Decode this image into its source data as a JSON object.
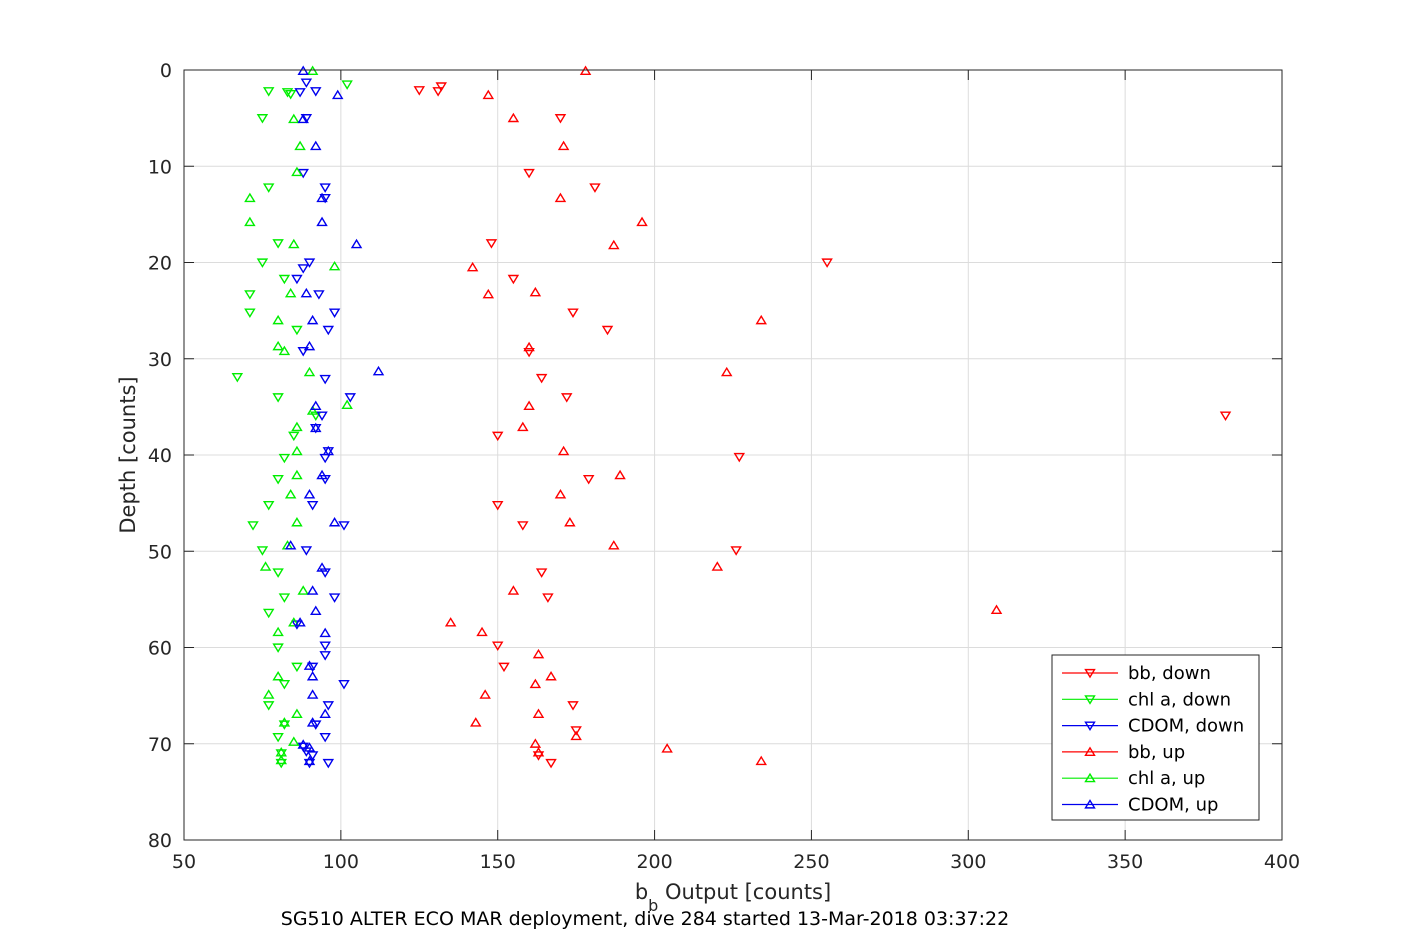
{
  "chart_data": {
    "type": "scatter",
    "xlabel_main": "b",
    "xlabel_sub": "b",
    "xlabel_rest": " Output [counts]",
    "ylabel": "Depth [counts]",
    "caption": "SG510 ALTER ECO MAR deployment, dive 284 started 13-Mar-2018 03:37:22",
    "xlim": [
      50,
      400
    ],
    "ylim": [
      0,
      80
    ],
    "y_reversed": true,
    "grid": true,
    "legend_position": "bottom-right",
    "x_ticks": [
      50,
      100,
      150,
      200,
      250,
      300,
      350,
      400
    ],
    "y_ticks": [
      0,
      10,
      20,
      30,
      40,
      50,
      60,
      70,
      80
    ],
    "x_tick_labels": [
      "50",
      "100",
      "150",
      "200",
      "250",
      "300",
      "350",
      "400"
    ],
    "y_tick_labels": [
      "0",
      "10",
      "20",
      "30",
      "40",
      "50",
      "60",
      "70",
      "80"
    ],
    "series": [
      {
        "name": "bb, down",
        "color": "#ff0000",
        "marker": "triangle-down",
        "points": [
          [
            125,
            2.1
          ],
          [
            131,
            2.2
          ],
          [
            132,
            1.7
          ],
          [
            170,
            5
          ],
          [
            160,
            10.7
          ],
          [
            181,
            12.2
          ],
          [
            148,
            18
          ],
          [
            255,
            20
          ],
          [
            155,
            21.7
          ],
          [
            174,
            25.2
          ],
          [
            185,
            27
          ],
          [
            164,
            32
          ],
          [
            172,
            34
          ],
          [
            382,
            35.9
          ],
          [
            150,
            38
          ],
          [
            227,
            40.2
          ],
          [
            179,
            42.5
          ],
          [
            150,
            45.2
          ],
          [
            158,
            47.3
          ],
          [
            226,
            49.9
          ],
          [
            164,
            52.2
          ],
          [
            166,
            54.8
          ],
          [
            150,
            59.8
          ],
          [
            152,
            62
          ],
          [
            174,
            66
          ],
          [
            175,
            68.6
          ],
          [
            163,
            71.2
          ],
          [
            167,
            72
          ],
          [
            160,
            29.3
          ]
        ]
      },
      {
        "name": "chl a, down",
        "color": "#00ee00",
        "marker": "triangle-down",
        "points": [
          [
            102,
            1.5
          ],
          [
            77,
            2.2
          ],
          [
            83,
            2.3
          ],
          [
            84,
            2.5
          ],
          [
            75,
            5
          ],
          [
            77,
            12.2
          ],
          [
            80,
            18
          ],
          [
            75,
            20
          ],
          [
            82,
            21.7
          ],
          [
            71,
            23.3
          ],
          [
            71,
            25.2
          ],
          [
            86,
            27
          ],
          [
            67,
            31.9
          ],
          [
            80,
            34
          ],
          [
            92,
            35.9
          ],
          [
            85,
            38
          ],
          [
            82,
            40.3
          ],
          [
            80,
            42.5
          ],
          [
            77,
            45.2
          ],
          [
            72,
            47.3
          ],
          [
            75,
            49.9
          ],
          [
            80,
            52.2
          ],
          [
            82,
            54.8
          ],
          [
            77,
            56.4
          ],
          [
            80,
            60
          ],
          [
            86,
            62
          ],
          [
            82,
            63.8
          ],
          [
            77,
            66
          ],
          [
            82,
            68
          ],
          [
            80,
            69.3
          ],
          [
            81,
            71
          ],
          [
            81,
            72
          ]
        ]
      },
      {
        "name": "CDOM, down",
        "color": "#0000ee",
        "marker": "triangle-down",
        "points": [
          [
            89,
            1.3
          ],
          [
            92,
            2.2
          ],
          [
            87,
            2.3
          ],
          [
            89,
            5
          ],
          [
            88,
            10.7
          ],
          [
            95,
            12.2
          ],
          [
            95,
            13.3
          ],
          [
            90,
            20
          ],
          [
            88,
            20.6
          ],
          [
            86,
            21.7
          ],
          [
            93,
            23.3
          ],
          [
            98,
            25.2
          ],
          [
            96,
            27
          ],
          [
            88,
            29.2
          ],
          [
            95,
            32.1
          ],
          [
            103,
            34
          ],
          [
            94,
            35.9
          ],
          [
            92,
            37.2
          ],
          [
            96,
            39.6
          ],
          [
            95,
            40.3
          ],
          [
            95,
            42.5
          ],
          [
            91,
            45.2
          ],
          [
            101,
            47.3
          ],
          [
            89,
            49.9
          ],
          [
            95,
            52.2
          ],
          [
            98,
            54.8
          ],
          [
            86,
            57.6
          ],
          [
            95,
            59.8
          ],
          [
            95,
            60.8
          ],
          [
            91,
            62
          ],
          [
            101,
            63.8
          ],
          [
            96,
            66
          ],
          [
            92,
            68
          ],
          [
            95,
            69.3
          ],
          [
            88,
            70.3
          ],
          [
            89,
            70.8
          ],
          [
            91,
            71.2
          ],
          [
            90,
            72
          ],
          [
            96,
            72
          ]
        ]
      },
      {
        "name": "bb, up",
        "color": "#ff0000",
        "marker": "triangle-up",
        "points": [
          [
            178,
            0.1
          ],
          [
            147,
            2.6
          ],
          [
            155,
            5
          ],
          [
            171,
            7.9
          ],
          [
            170,
            13.3
          ],
          [
            196,
            15.8
          ],
          [
            187,
            18.2
          ],
          [
            142,
            20.5
          ],
          [
            162,
            23.1
          ],
          [
            234,
            26
          ],
          [
            147,
            23.3
          ],
          [
            160,
            28.8
          ],
          [
            223,
            31.4
          ],
          [
            160,
            34.9
          ],
          [
            158,
            37.1
          ],
          [
            171,
            39.6
          ],
          [
            189,
            42.1
          ],
          [
            170,
            44.1
          ],
          [
            173,
            47
          ],
          [
            187,
            49.4
          ],
          [
            220,
            51.6
          ],
          [
            155,
            54.1
          ],
          [
            135,
            57.4
          ],
          [
            145,
            58.4
          ],
          [
            163,
            60.7
          ],
          [
            167,
            63
          ],
          [
            162,
            63.8
          ],
          [
            146,
            64.9
          ],
          [
            163,
            66.9
          ],
          [
            143,
            67.8
          ],
          [
            175,
            69.2
          ],
          [
            204,
            70.5
          ],
          [
            162,
            70
          ],
          [
            163,
            70.9
          ],
          [
            234,
            71.8
          ],
          [
            309,
            56.1
          ]
        ]
      },
      {
        "name": "chl a, up",
        "color": "#00ee00",
        "marker": "triangle-up",
        "points": [
          [
            91,
            0.1
          ],
          [
            85,
            5.1
          ],
          [
            87,
            7.9
          ],
          [
            86,
            10.6
          ],
          [
            71,
            13.3
          ],
          [
            71,
            15.8
          ],
          [
            85,
            18.1
          ],
          [
            98,
            20.4
          ],
          [
            84,
            23.2
          ],
          [
            80,
            26
          ],
          [
            80,
            28.7
          ],
          [
            82,
            29.2
          ],
          [
            90,
            31.4
          ],
          [
            102,
            34.8
          ],
          [
            91,
            35.4
          ],
          [
            86,
            37.1
          ],
          [
            86,
            39.6
          ],
          [
            86,
            42.1
          ],
          [
            84,
            44.1
          ],
          [
            86,
            47
          ],
          [
            83,
            49.4
          ],
          [
            76,
            51.6
          ],
          [
            88,
            54.1
          ],
          [
            85,
            57.4
          ],
          [
            80,
            58.4
          ],
          [
            80,
            63
          ],
          [
            77,
            64.9
          ],
          [
            86,
            66.9
          ],
          [
            82,
            67.8
          ],
          [
            85,
            69.8
          ],
          [
            81,
            70.9
          ],
          [
            81,
            71.7
          ]
        ]
      },
      {
        "name": "CDOM, up",
        "color": "#0000ee",
        "marker": "triangle-up",
        "points": [
          [
            88,
            0.1
          ],
          [
            99,
            2.6
          ],
          [
            88,
            5.1
          ],
          [
            92,
            7.9
          ],
          [
            94,
            13.3
          ],
          [
            94,
            15.8
          ],
          [
            105,
            18.1
          ],
          [
            89,
            23.2
          ],
          [
            91,
            26
          ],
          [
            90,
            28.7
          ],
          [
            112,
            31.3
          ],
          [
            92,
            34.9
          ],
          [
            92,
            37.2
          ],
          [
            96,
            39.6
          ],
          [
            94,
            42.1
          ],
          [
            90,
            44.1
          ],
          [
            98,
            47
          ],
          [
            84,
            49.4
          ],
          [
            94,
            51.7
          ],
          [
            91,
            54.1
          ],
          [
            92,
            56.2
          ],
          [
            87,
            57.4
          ],
          [
            95,
            58.5
          ],
          [
            90,
            61.9
          ],
          [
            91,
            63
          ],
          [
            91,
            64.9
          ],
          [
            95,
            66.9
          ],
          [
            91,
            67.8
          ],
          [
            88,
            70.1
          ],
          [
            90,
            70.4
          ],
          [
            90,
            71.8
          ]
        ]
      }
    ]
  }
}
